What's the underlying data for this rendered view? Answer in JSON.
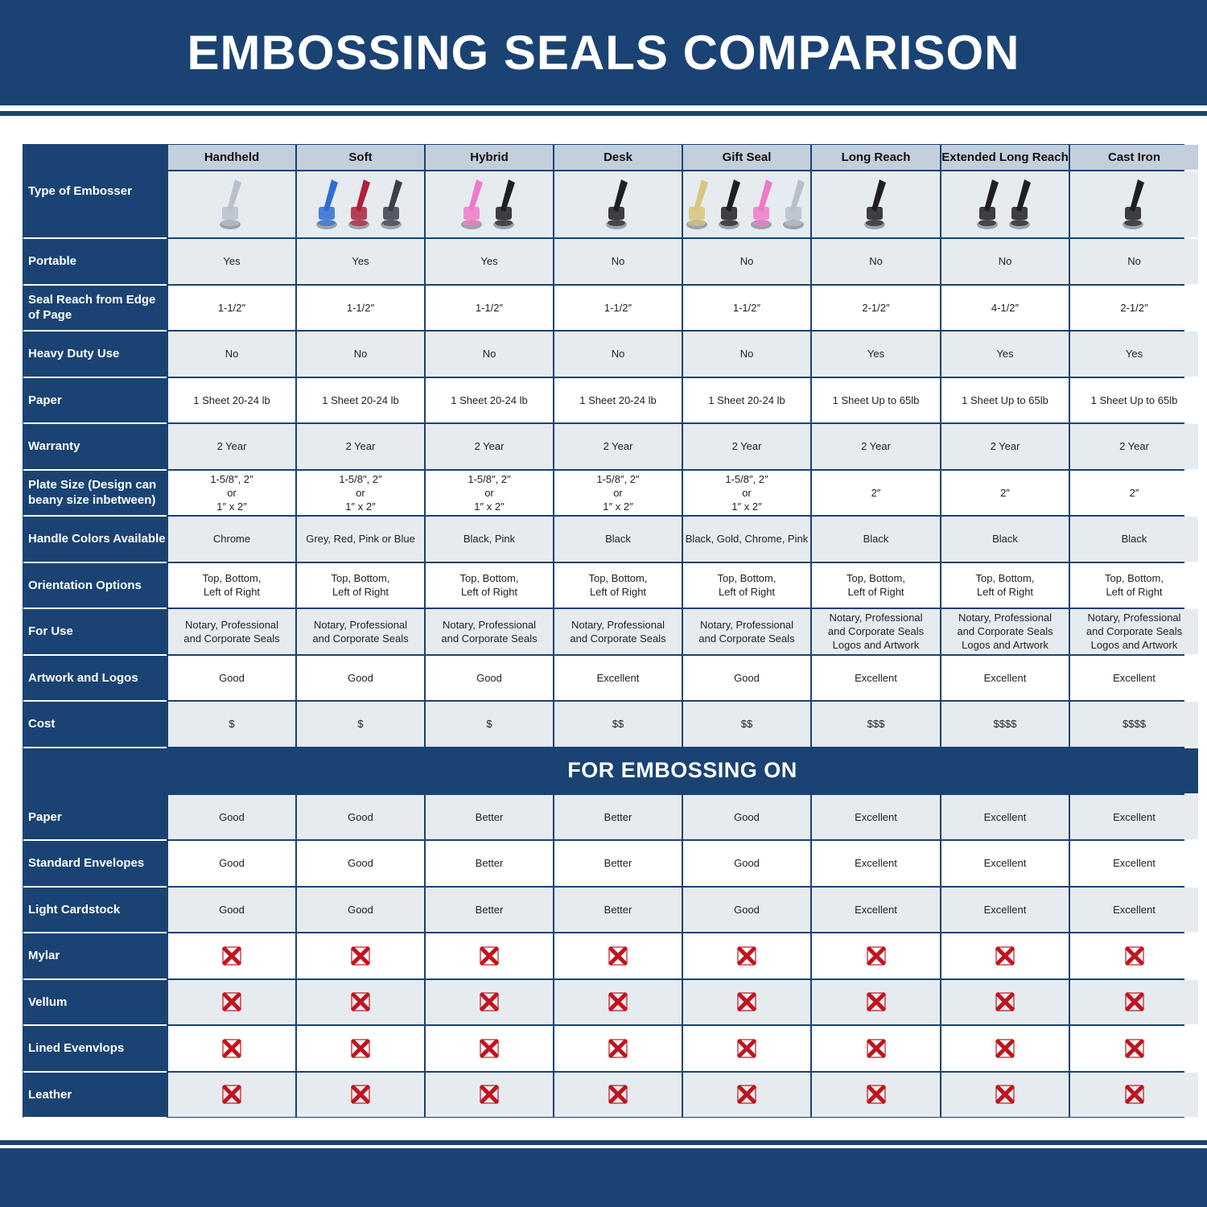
{
  "title": "EMBOSSING SEALS COMPARISON",
  "colors": {
    "brand": "#1a4373",
    "header_gray": "#c3cfdc",
    "row_gray": "#e6ebf0",
    "cross": "#c0141e"
  },
  "type_label": "Type of Embosser",
  "columns": [
    {
      "name": "Handheld",
      "image_colors": [
        "#b8c0cc"
      ]
    },
    {
      "name": "Soft",
      "image_colors": [
        "#2f6fd0",
        "#b0203a",
        "#3a3f4a"
      ]
    },
    {
      "name": "Hybrid",
      "image_colors": [
        "#f07ac8",
        "#1e1f24"
      ]
    },
    {
      "name": "Desk",
      "image_colors": [
        "#1e1f24"
      ]
    },
    {
      "name": "Gift Seal",
      "image_colors": [
        "#d8c67a",
        "#1e1f24",
        "#f07ac8",
        "#b8c0cc"
      ]
    },
    {
      "name": "Long Reach",
      "image_colors": [
        "#1e1f24"
      ]
    },
    {
      "name": "Extended Long Reach",
      "image_colors": [
        "#1e1f24",
        "#1e1f24"
      ]
    },
    {
      "name": "Cast Iron",
      "image_colors": [
        "#1e1f24"
      ]
    }
  ],
  "rows": [
    {
      "label": "Portable",
      "values": [
        "Yes",
        "Yes",
        "Yes",
        "No",
        "No",
        "No",
        "No",
        "No"
      ]
    },
    {
      "label": "Seal Reach from Edge of Page",
      "values": [
        "1-1/2″",
        "1-1/2″",
        "1-1/2″",
        "1-1/2″",
        "1-1/2″",
        "2-1/2″",
        "4-1/2″",
        "2-1/2″"
      ]
    },
    {
      "label": "Heavy Duty Use",
      "values": [
        "No",
        "No",
        "No",
        "No",
        "No",
        "Yes",
        "Yes",
        "Yes"
      ]
    },
    {
      "label": "Paper",
      "values": [
        "1 Sheet 20-24 lb",
        "1 Sheet 20-24 lb",
        "1 Sheet 20-24 lb",
        "1 Sheet 20-24 lb",
        "1 Sheet 20-24 lb",
        "1 Sheet Up to 65lb",
        "1 Sheet Up to 65lb",
        "1 Sheet Up to 65lb"
      ]
    },
    {
      "label": "Warranty",
      "values": [
        "2 Year",
        "2 Year",
        "2 Year",
        "2 Year",
        "2 Year",
        "2 Year",
        "2 Year",
        "2 Year"
      ]
    },
    {
      "label": "Plate Size (Design can beany size inbetween)",
      "values": [
        "1-5/8″, 2″\nor\n1″ x 2″",
        "1-5/8″, 2″\nor\n1″ x 2″",
        "1-5/8″, 2″\nor\n1″ x 2″",
        "1-5/8″, 2″\nor\n1″ x 2″",
        "1-5/8″, 2″\nor\n1″ x 2″",
        "2″",
        "2″",
        "2″"
      ]
    },
    {
      "label": "Handle Colors Available",
      "values": [
        "Chrome",
        "Grey, Red, Pink or Blue",
        "Black, Pink",
        "Black",
        "Black, Gold, Chrome, Pink",
        "Black",
        "Black",
        "Black"
      ]
    },
    {
      "label": "Orientation Options",
      "values": [
        "Top, Bottom,\nLeft of Right",
        "Top, Bottom,\nLeft of Right",
        "Top, Bottom,\nLeft of Right",
        "Top, Bottom,\nLeft of Right",
        "Top, Bottom,\nLeft of Right",
        "Top, Bottom,\nLeft of Right",
        "Top, Bottom,\nLeft of Right",
        "Top, Bottom,\nLeft of Right"
      ]
    },
    {
      "label": "For Use",
      "values": [
        "Notary, Professional\nand Corporate Seals",
        "Notary, Professional\nand Corporate Seals",
        "Notary, Professional\nand Corporate Seals",
        "Notary, Professional\nand Corporate Seals",
        "Notary, Professional\nand Corporate Seals",
        "Notary, Professional\nand Corporate Seals\nLogos and Artwork",
        "Notary, Professional\nand Corporate Seals\nLogos and Artwork",
        "Notary, Professional\nand Corporate Seals\nLogos and Artwork"
      ]
    },
    {
      "label": "Artwork and Logos",
      "values": [
        "Good",
        "Good",
        "Good",
        "Excellent",
        "Good",
        "Excellent",
        "Excellent",
        "Excellent"
      ]
    },
    {
      "label": "Cost",
      "values": [
        "$",
        "$",
        "$",
        "$$",
        "$$",
        "$$$",
        "$$$$",
        "$$$$"
      ]
    }
  ],
  "section_title": "FOR EMBOSSING ON",
  "embossing_rows": [
    {
      "label": "Paper",
      "values": [
        "Good",
        "Good",
        "Better",
        "Better",
        "Good",
        "Excellent",
        "Excellent",
        "Excellent"
      ]
    },
    {
      "label": "Standard Envelopes",
      "values": [
        "Good",
        "Good",
        "Better",
        "Better",
        "Good",
        "Excellent",
        "Excellent",
        "Excellent"
      ]
    },
    {
      "label": "Light Cardstock",
      "values": [
        "Good",
        "Good",
        "Better",
        "Better",
        "Good",
        "Excellent",
        "Excellent",
        "Excellent"
      ]
    },
    {
      "label": "Mylar",
      "values": [
        "cross-icon",
        "cross-icon",
        "cross-icon",
        "cross-icon",
        "cross-icon",
        "cross-icon",
        "cross-icon",
        "cross-icon"
      ]
    },
    {
      "label": "Vellum",
      "values": [
        "cross-icon",
        "cross-icon",
        "cross-icon",
        "cross-icon",
        "cross-icon",
        "cross-icon",
        "cross-icon",
        "cross-icon"
      ]
    },
    {
      "label": "Lined Evenvlops",
      "values": [
        "cross-icon",
        "cross-icon",
        "cross-icon",
        "cross-icon",
        "cross-icon",
        "cross-icon",
        "cross-icon",
        "cross-icon"
      ]
    },
    {
      "label": "Leather",
      "values": [
        "cross-icon",
        "cross-icon",
        "cross-icon",
        "cross-icon",
        "cross-icon",
        "cross-icon",
        "cross-icon",
        "cross-icon"
      ]
    }
  ]
}
